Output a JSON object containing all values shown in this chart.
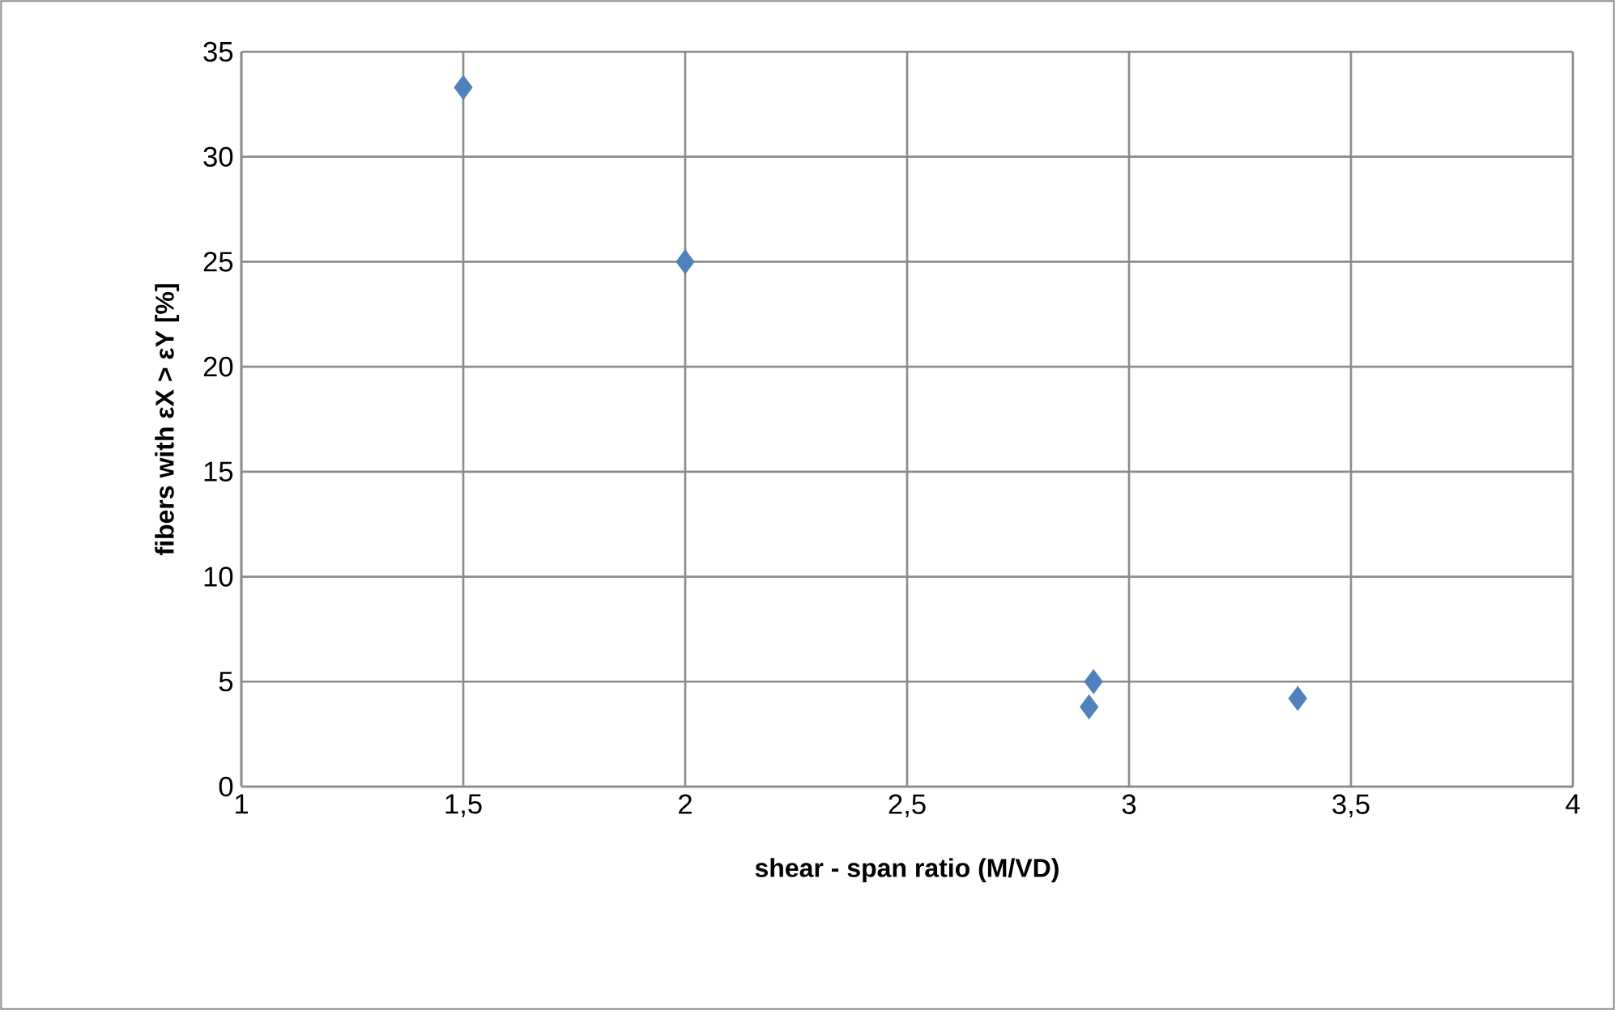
{
  "chart_data": {
    "type": "scatter",
    "xlabel": "shear - span ratio (M/VD)",
    "ylabel": "fibers with εX > εY [%]",
    "x": [
      1.5,
      2.0,
      2.92,
      2.91,
      3.38
    ],
    "series": [
      {
        "color": "#4f81bd",
        "values": [
          33.3,
          25.0,
          5.0,
          3.8,
          4.2
        ]
      }
    ],
    "xlim": [
      1,
      4
    ],
    "ylim": [
      0,
      35
    ],
    "xticks": [
      1,
      {
        "value": 1.5,
        "label": "1,5"
      },
      2,
      {
        "value": 2.5,
        "label": "2,5"
      },
      3,
      {
        "value": 3.5,
        "label": "3,5"
      },
      4
    ],
    "yticks": [
      0,
      5,
      10,
      15,
      20,
      25,
      30,
      35
    ],
    "grid": true,
    "marker": "diamond"
  }
}
